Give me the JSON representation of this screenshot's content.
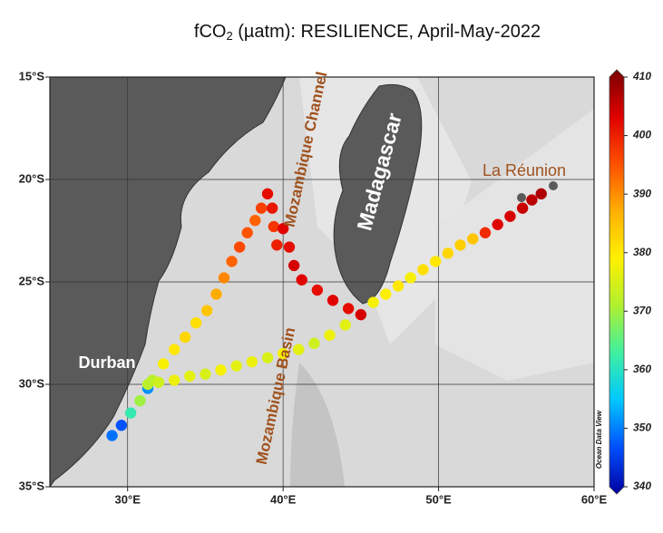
{
  "chart_data": {
    "type": "map-track",
    "title": {
      "main": "fCO",
      "sub": "2",
      "rest": " (µatm):  RESILIENCE, April-May-2022"
    },
    "xlim": [
      25,
      60
    ],
    "xticks": [
      {
        "value": 30,
        "label": "30°E"
      },
      {
        "value": 40,
        "label": "40°E"
      },
      {
        "value": 50,
        "label": "50°E"
      },
      {
        "value": 60,
        "label": "60°E"
      }
    ],
    "ylim": [
      -35,
      -15
    ],
    "yticks": [
      {
        "value": -15,
        "label": "15°S"
      },
      {
        "value": -20,
        "label": "20°S"
      },
      {
        "value": -25,
        "label": "25°S"
      },
      {
        "value": -30,
        "label": "30°S"
      },
      {
        "value": -35,
        "label": "35°S"
      }
    ],
    "grid": true,
    "x": [
      29.0,
      29.6,
      30.2,
      30.8,
      31.3,
      31.6,
      32.3,
      33.0,
      33.7,
      34.4,
      35.1,
      35.7,
      36.2,
      36.7,
      37.2,
      37.7,
      38.2,
      38.6,
      39.0,
      39.3,
      39.4,
      39.6,
      40.0,
      40.4,
      40.7,
      41.2,
      42.2,
      43.2,
      44.2,
      45.0,
      44.0,
      43.0,
      42.0,
      41.0,
      40.0,
      39.0,
      38.0,
      37.0,
      36.0,
      35.0,
      34.0,
      33.0,
      32.0,
      31.3,
      45.8,
      46.6,
      47.4,
      48.2,
      49.0,
      49.8,
      50.6,
      51.4,
      52.2,
      53.0,
      53.8,
      54.6,
      55.4,
      56.0,
      56.6
    ],
    "y": [
      -32.5,
      -32.0,
      -31.4,
      -30.8,
      -30.2,
      -29.8,
      -29.0,
      -28.3,
      -27.7,
      -27.0,
      -26.4,
      -25.6,
      -24.8,
      -24.0,
      -23.3,
      -22.6,
      -22.0,
      -21.4,
      -20.7,
      -21.4,
      -22.3,
      -23.2,
      -22.4,
      -23.3,
      -24.2,
      -24.9,
      -25.4,
      -25.9,
      -26.3,
      -26.6,
      -27.1,
      -27.6,
      -28.0,
      -28.3,
      -28.5,
      -28.7,
      -28.9,
      -29.1,
      -29.3,
      -29.5,
      -29.6,
      -29.8,
      -29.9,
      -30.0,
      -26.0,
      -25.6,
      -25.2,
      -24.8,
      -24.4,
      -24.0,
      -23.6,
      -23.2,
      -22.9,
      -22.6,
      -22.2,
      -21.8,
      -21.4,
      -21.0,
      -20.7
    ],
    "values": [
      350,
      348,
      362,
      370,
      352,
      372,
      378,
      380,
      382,
      381,
      384,
      387,
      390,
      393,
      395,
      394,
      393,
      396,
      401,
      400,
      397,
      399,
      402,
      401,
      403,
      402,
      401,
      402,
      401,
      403,
      376,
      377,
      374,
      376,
      378,
      375,
      377,
      376,
      378,
      375,
      376,
      377,
      374,
      372,
      378,
      379,
      380,
      378,
      381,
      380,
      382,
      383,
      384,
      398,
      402,
      403,
      404,
      405,
      406
    ],
    "colormap": [
      "#0000a0",
      "#0050ff",
      "#00c8ff",
      "#40f0a0",
      "#b0f030",
      "#fff000",
      "#ffb000",
      "#ff5000",
      "#e00000",
      "#7a0000"
    ],
    "colorbar": {
      "lim": [
        340,
        410
      ],
      "ticks": [
        340,
        350,
        360,
        370,
        380,
        390,
        400,
        410
      ]
    },
    "annotations": [
      "Mozambique Channel",
      "Madagascar",
      "La Réunion",
      "Durban",
      "Mozambique Basin",
      "Ocean Data View"
    ]
  }
}
